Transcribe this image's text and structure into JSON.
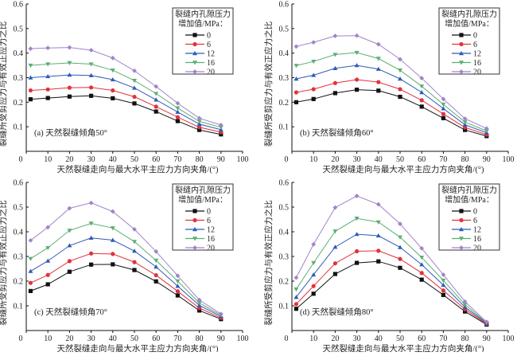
{
  "figure": {
    "ylabel": "裂缝所受剪应力与有效正应力之比",
    "xlabel": "天然裂缝走向与最大水平主应力方向夹角/(°)",
    "legend_title_line1": "裂缝内孔隙压力",
    "legend_title_line2": "增加值/MPa：",
    "series_colors": {
      "0": "#111111",
      "6": "#e2323c",
      "12": "#2f5bb7",
      "16": "#5cae72",
      "20": "#a283c9"
    },
    "series_markers": {
      "0": "square",
      "6": "circle",
      "12": "triangle-up",
      "16": "triangle-down",
      "20": "diamond"
    }
  },
  "chart_data": [
    {
      "type": "line",
      "annotation": "(a) 天然裂缝倾角50°",
      "title": "",
      "xlabel": "天然裂缝走向与最大水平主应力方向夹角/(°)",
      "ylabel": "裂缝所受剪应力与有效正应力之比",
      "xlim": [
        0,
        100
      ],
      "ylim": [
        0,
        0.6
      ],
      "xticks": [
        0,
        10,
        20,
        30,
        40,
        50,
        60,
        70,
        80,
        90,
        100
      ],
      "yticks": [
        0.1,
        0.2,
        0.3,
        0.4,
        0.5,
        0.6
      ],
      "ytick_labels": [
        "0.1",
        "0.2",
        "0.3",
        "0.4",
        "0.5",
        "0.6"
      ],
      "grid": false,
      "legend_position": "top-right",
      "legend_title": "裂缝内孔隙压力增加值/MPa：",
      "x": [
        2,
        10,
        20,
        30,
        40,
        50,
        60,
        70,
        80,
        90
      ],
      "series": [
        {
          "name": "0",
          "values": [
            0.212,
            0.217,
            0.223,
            0.226,
            0.216,
            0.195,
            0.162,
            0.123,
            0.087,
            0.069
          ]
        },
        {
          "name": "6",
          "values": [
            0.248,
            0.252,
            0.259,
            0.26,
            0.248,
            0.222,
            0.182,
            0.139,
            0.098,
            0.078
          ]
        },
        {
          "name": "12",
          "values": [
            0.3,
            0.305,
            0.311,
            0.309,
            0.292,
            0.258,
            0.21,
            0.16,
            0.111,
            0.088
          ]
        },
        {
          "name": "16",
          "values": [
            0.35,
            0.355,
            0.36,
            0.355,
            0.33,
            0.288,
            0.235,
            0.176,
            0.122,
            0.098
          ]
        },
        {
          "name": "20",
          "values": [
            0.418,
            0.421,
            0.423,
            0.412,
            0.38,
            0.328,
            0.264,
            0.196,
            0.135,
            0.107
          ]
        }
      ]
    },
    {
      "type": "line",
      "annotation": "(b) 天然裂缝倾角60°",
      "title": "",
      "xlabel": "天然裂缝走向与最大水平主应力方向夹角/(°)",
      "ylabel": "裂缝所受剪应力与有效正应力之比",
      "xlim": [
        0,
        100
      ],
      "ylim": [
        0,
        0.6
      ],
      "xticks": [
        0,
        10,
        20,
        30,
        40,
        50,
        60,
        70,
        80,
        90,
        100
      ],
      "yticks": [
        0.1,
        0.2,
        0.3,
        0.4,
        0.5,
        0.6
      ],
      "ytick_labels": [
        "0.1",
        "0.2",
        "0.3",
        "0.4",
        "0.5",
        "0.6"
      ],
      "grid": false,
      "legend_position": "top-right",
      "legend_title": "裂缝内孔隙压力增加值/MPa：",
      "x": [
        2,
        10,
        20,
        30,
        40,
        50,
        60,
        70,
        80,
        90
      ],
      "series": [
        {
          "name": "0",
          "values": [
            0.2,
            0.213,
            0.237,
            0.251,
            0.247,
            0.222,
            0.182,
            0.135,
            0.087,
            0.062
          ]
        },
        {
          "name": "6",
          "values": [
            0.24,
            0.253,
            0.278,
            0.292,
            0.282,
            0.253,
            0.208,
            0.152,
            0.097,
            0.068
          ]
        },
        {
          "name": "12",
          "values": [
            0.295,
            0.31,
            0.338,
            0.35,
            0.335,
            0.295,
            0.24,
            0.174,
            0.108,
            0.076
          ]
        },
        {
          "name": "16",
          "values": [
            0.349,
            0.366,
            0.394,
            0.402,
            0.378,
            0.33,
            0.265,
            0.191,
            0.119,
            0.083
          ]
        },
        {
          "name": "20",
          "values": [
            0.427,
            0.444,
            0.47,
            0.471,
            0.436,
            0.375,
            0.298,
            0.213,
            0.133,
            0.093
          ]
        }
      ]
    },
    {
      "type": "line",
      "annotation": "(c) 天然裂缝倾角70°",
      "title": "",
      "xlabel": "天然裂缝走向与最大水平主应力方向夹角/(°)",
      "ylabel": "裂缝所受剪应力与有效正应力之比",
      "xlim": [
        0,
        100
      ],
      "ylim": [
        0,
        0.6
      ],
      "xticks": [
        0,
        10,
        20,
        30,
        40,
        50,
        60,
        70,
        80,
        90,
        100
      ],
      "yticks": [
        0.1,
        0.2,
        0.3,
        0.4,
        0.5,
        0.6
      ],
      "ytick_labels": [
        "0.1",
        "0.2",
        "0.3",
        "0.4",
        "0.5",
        "0.6"
      ],
      "grid": false,
      "legend_position": "top-right",
      "legend_title": "裂缝内孔隙压力增加值/MPa：",
      "x": [
        2,
        10,
        20,
        30,
        40,
        50,
        60,
        70,
        80,
        90
      ],
      "series": [
        {
          "name": "0",
          "values": [
            0.16,
            0.187,
            0.238,
            0.267,
            0.268,
            0.245,
            0.199,
            0.142,
            0.081,
            0.046
          ]
        },
        {
          "name": "6",
          "values": [
            0.193,
            0.225,
            0.281,
            0.312,
            0.31,
            0.277,
            0.224,
            0.159,
            0.091,
            0.051
          ]
        },
        {
          "name": "12",
          "values": [
            0.24,
            0.282,
            0.344,
            0.375,
            0.366,
            0.322,
            0.258,
            0.18,
            0.102,
            0.057
          ]
        },
        {
          "name": "16",
          "values": [
            0.291,
            0.335,
            0.405,
            0.434,
            0.415,
            0.36,
            0.284,
            0.2,
            0.112,
            0.062
          ]
        },
        {
          "name": "20",
          "values": [
            0.365,
            0.418,
            0.495,
            0.517,
            0.482,
            0.41,
            0.32,
            0.222,
            0.124,
            0.067
          ]
        }
      ]
    },
    {
      "type": "line",
      "annotation": "(d) 天然裂缝倾角80°",
      "title": "",
      "xlabel": "天然裂缝走向与最大水平主应力方向夹角/(°)",
      "ylabel": "裂缝所受剪应力与有效正应力之比",
      "xlim": [
        0,
        100
      ],
      "ylim": [
        0,
        0.6
      ],
      "xticks": [
        0,
        10,
        20,
        30,
        40,
        50,
        60,
        70,
        80,
        90,
        100
      ],
      "yticks": [
        0.1,
        0.2,
        0.3,
        0.4,
        0.5,
        0.6
      ],
      "ytick_labels": [
        "0.1",
        "0.2",
        "0.3",
        "0.4",
        "0.5",
        "0.6"
      ],
      "grid": false,
      "legend_position": "top-right",
      "legend_title": "裂缝内孔隙压力增加值/MPa：",
      "x": [
        2,
        10,
        20,
        30,
        40,
        50,
        60,
        70,
        80,
        90
      ],
      "series": [
        {
          "name": "0",
          "values": [
            0.088,
            0.149,
            0.229,
            0.274,
            0.28,
            0.254,
            0.206,
            0.144,
            0.077,
            0.024
          ]
        },
        {
          "name": "6",
          "values": [
            0.107,
            0.18,
            0.272,
            0.321,
            0.323,
            0.29,
            0.233,
            0.162,
            0.086,
            0.027
          ]
        },
        {
          "name": "12",
          "values": [
            0.135,
            0.226,
            0.338,
            0.39,
            0.384,
            0.337,
            0.267,
            0.184,
            0.095,
            0.03
          ]
        },
        {
          "name": "16",
          "values": [
            0.167,
            0.274,
            0.402,
            0.454,
            0.439,
            0.378,
            0.296,
            0.203,
            0.105,
            0.032
          ]
        },
        {
          "name": "20",
          "values": [
            0.214,
            0.349,
            0.498,
            0.545,
            0.511,
            0.432,
            0.333,
            0.226,
            0.117,
            0.035
          ]
        }
      ]
    }
  ]
}
